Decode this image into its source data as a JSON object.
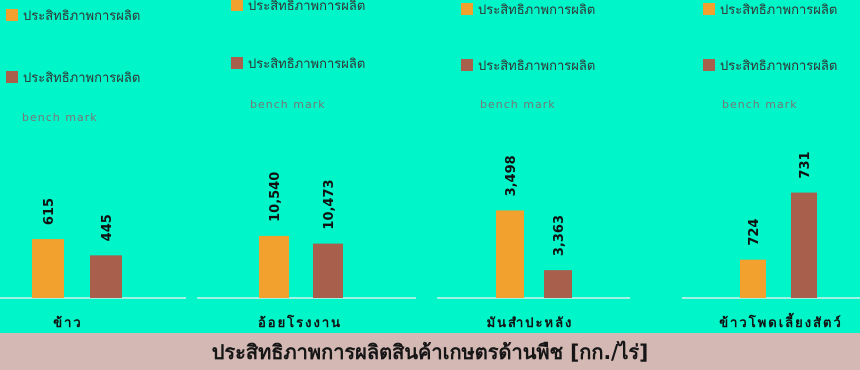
{
  "footer_title": "ประสิทธิภาพการผลิตสินค้าเกษตรด้านพืช [กก./ไร่]",
  "colors": {
    "background": "#00f5c8",
    "series_actual": "#f2a12e",
    "series_benchmark": "#a8604d",
    "footer": "#d4b8b4"
  },
  "chart_data": [
    {
      "type": "bar",
      "categories": [
        "ข้าว"
      ],
      "series": [
        {
          "name": "ประสิทธิภาพการผลิต",
          "values": [
            615
          ]
        },
        {
          "name": "ประสิทธิภาพการผลิต bench mark",
          "values": [
            445
          ]
        }
      ],
      "data_labels": [
        "615",
        "445"
      ],
      "legend": [
        {
          "line1": "ประสิทธิภาพการผลิต",
          "line2": ""
        },
        {
          "line1": "ประสิทธิภาพการผลิต",
          "line2": "bench mark"
        }
      ],
      "ylim": [
        0,
        1200
      ]
    },
    {
      "type": "bar",
      "categories": [
        "อ้อยโรงงาน"
      ],
      "series": [
        {
          "name": "ประสิทธิภาพการผลิต",
          "values": [
            10540
          ]
        },
        {
          "name": "ประสิทธิภาพการผลิต bench mark",
          "values": [
            10473
          ]
        }
      ],
      "data_labels": [
        "10,540",
        "10,473"
      ],
      "legend": [
        {
          "line1": "ประสิทธิภาพการผลิต",
          "line2": ""
        },
        {
          "line1": "ประสิทธิภาพการผลิต",
          "line2": "bench mark"
        }
      ],
      "ylim": [
        10000,
        11000
      ]
    },
    {
      "type": "bar",
      "categories": [
        "มันสำปะหลัง"
      ],
      "series": [
        {
          "name": "ประสิทธิภาพการผลิต",
          "values": [
            3498
          ]
        },
        {
          "name": "ประสิทธิภาพการผลิต bench mark",
          "values": [
            3363
          ]
        }
      ],
      "data_labels": [
        "3,498",
        "3,363"
      ],
      "legend": [
        {
          "line1": "ประสิทธิภาพการผลิต",
          "line2": ""
        },
        {
          "line1": "ประสิทธิภาพการผลิต",
          "line2": "bench mark"
        }
      ],
      "ylim": [
        3300,
        3560
      ]
    },
    {
      "type": "bar",
      "categories": [
        "ข้าวโพดเลี้ยงสัตว์"
      ],
      "series": [
        {
          "name": "ประสิทธิภาพการผลิต",
          "values": [
            724
          ]
        },
        {
          "name": "ประสิทธิภาพการผลิต bench mark",
          "values": [
            731
          ]
        }
      ],
      "data_labels": [
        "724",
        "731"
      ],
      "legend": [
        {
          "line1": "ประสิทธิภาพการผลิต",
          "line2": ""
        },
        {
          "line1": "ประสิทธิภาพการผลิต",
          "line2": "bench mark"
        }
      ],
      "ylim": [
        720,
        732
      ]
    }
  ]
}
